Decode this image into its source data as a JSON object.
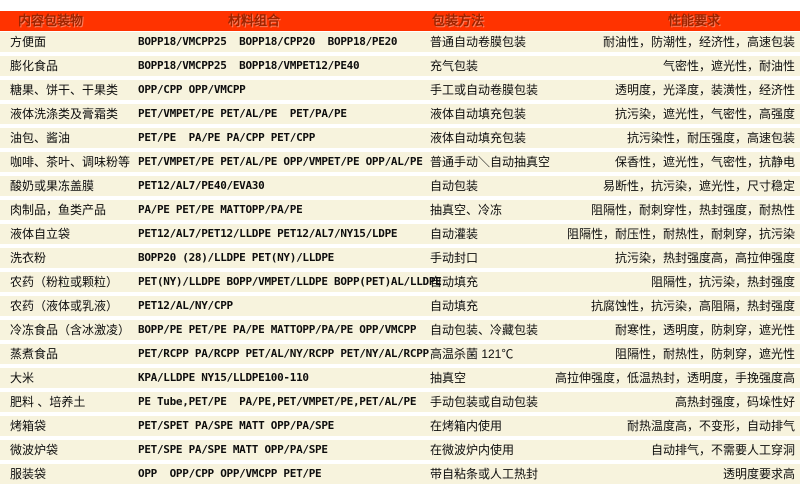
{
  "colors": {
    "header_bg": "#ff3300",
    "header_text": "#9e2400",
    "row_bg": "#f7f3dd",
    "body_text": "#0d0d0d"
  },
  "table": {
    "headers": [
      "内容包装物",
      "材料组合",
      "包装方法",
      "性能要求"
    ],
    "rows": [
      {
        "item": "方便面",
        "materials": "BOPP18/VMCPP25  BOPP18/CPP20  BOPP18/PE20",
        "method": "普通自动卷膜包装",
        "requirements": "耐油性，防潮性，经济性，高速包装"
      },
      {
        "item": "膨化食品",
        "materials": "BOPP18/VMCPP25  BOPP18/VMPET12/PE40",
        "method": "充气包装",
        "requirements": "气密性，遮光性，耐油性"
      },
      {
        "item": "糖果、饼干、干果类",
        "materials": "OPP/CPP OPP/VMCPP",
        "method": "手工或自动卷膜包装",
        "requirements": "透明度，光泽度，装潢性，经济性"
      },
      {
        "item": "液体洗涤类及膏霜类",
        "materials": "PET/VMPET/PE PET/AL/PE  PET/PA/PE",
        "method": "液体自动填充包装",
        "requirements": "抗污染，遮光性，气密性，高强度"
      },
      {
        "item": "油包、酱油",
        "materials": "PET/PE  PA/PE PA/CPP PET/CPP",
        "method": "液体自动填充包装",
        "requirements": "抗污染性，耐压强度，高速包装"
      },
      {
        "item": "咖啡、茶叶、调味粉等",
        "materials": "PET/VMPET/PE PET/AL/PE OPP/VMPET/PE OPP/AL/PE",
        "method": "普通手动＼自动抽真空",
        "requirements": "保香性，遮光性，气密性，抗静电"
      },
      {
        "item": "酸奶或果冻盖膜",
        "materials": "PET12/AL7/PE40/EVA30",
        "method": "自动包装",
        "requirements": "易断性，抗污染，遮光性，尺寸稳定"
      },
      {
        "item": "肉制品，鱼类产品",
        "materials": "PA/PE PET/PE MATTOPP/PA/PE",
        "method": "抽真空、冷冻",
        "requirements": "阻隔性，耐刺穿性，热封强度，耐热性"
      },
      {
        "item": "液体自立袋",
        "materials": "PET12/AL7/PET12/LLDPE PET12/AL7/NY15/LDPE",
        "method": "自动灌装",
        "requirements": "阻隔性，耐压性，耐热性，耐刺穿，抗污染"
      },
      {
        "item": "洗衣粉",
        "materials": "BOPP20 (28)/LLDPE PET(NY)/LLDPE",
        "method": "手动封口",
        "requirements": "抗污染，热封强度高，高拉伸强度"
      },
      {
        "item": "农药（粉粒或颗粒）",
        "materials": "PET(NY)/LLDPE BOPP/VMPET/LLDPE BOPP(PET)AL/LLDPE",
        "method": "自动填充",
        "requirements": "阻隔性，抗污染，热封强度"
      },
      {
        "item": "农药（液体或乳液）",
        "materials": "PET12/AL/NY/CPP",
        "method": "自动填充",
        "requirements": "抗腐蚀性，抗污染，高阻隔，热封强度"
      },
      {
        "item": "冷冻食品（含冰激凌）",
        "materials": "BOPP/PE PET/PE PA/PE MATTOPP/PA/PE OPP/VMCPP",
        "method": "自动包装、冷藏包装",
        "requirements": "耐寒性，透明度，防刺穿，遮光性"
      },
      {
        "item": "蒸煮食品",
        "materials": "PET/RCPP PA/RCPP PET/AL/NY/RCPP PET/NY/AL/RCPP",
        "method": "高温杀菌 121℃",
        "requirements": "阻隔性，耐热性，防刺穿，遮光性"
      },
      {
        "item": "大米",
        "materials": "KPA/LLDPE NY15/LLDPE100-110",
        "method": "抽真空",
        "requirements": "高拉伸强度，低温热封，透明度，手挽强度高"
      },
      {
        "item": "肥料 、培养土",
        "materials": "PE Tube,PET/PE  PA/PE,PET/VMPET/PE,PET/AL/PE",
        "method": "手动包装或自动包装",
        "requirements": "高热封强度，码垛性好"
      },
      {
        "item": "烤箱袋",
        "materials": "PET/SPET PA/SPE MATT OPP/PA/SPE",
        "method": "在烤箱内使用",
        "requirements": "耐热温度高，不变形，自动排气"
      },
      {
        "item": "微波炉袋",
        "materials": "PET/SPE PA/SPE MATT OPP/PA/SPE",
        "method": "在微波炉内使用",
        "requirements": "自动排气，不需要人工穿洞"
      },
      {
        "item": "服装袋",
        "materials": "OPP  OPP/CPP OPP/VMCPP PET/PE",
        "method": "带自粘条或人工热封",
        "requirements": "透明度要求高"
      }
    ]
  }
}
